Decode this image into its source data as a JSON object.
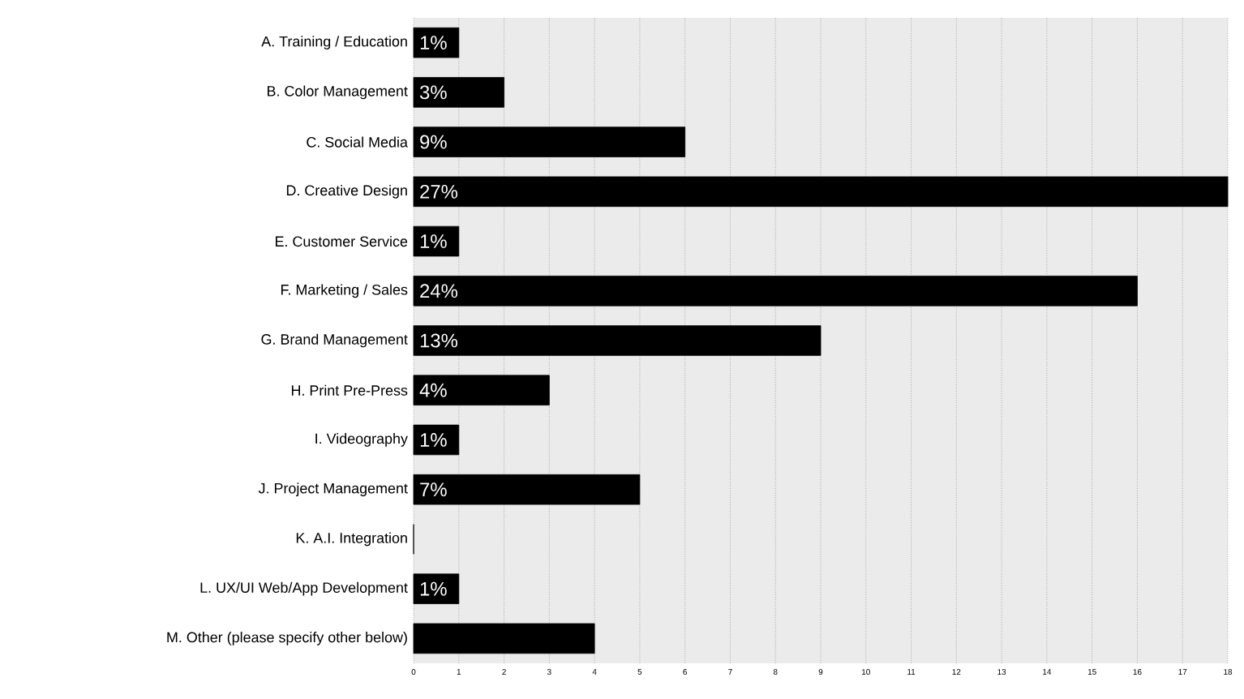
{
  "chart_data": {
    "type": "bar",
    "orientation": "horizontal",
    "categories": [
      "A. Training / Education",
      "B. Color Management",
      "C. Social Media",
      "D. Creative Design",
      "E. Customer Service",
      "F. Marketing / Sales",
      "G. Brand Management",
      "H. Print Pre-Press",
      "I. Videography",
      "J. Project Management",
      "K. A.I. Integration",
      "L. UX/UI Web/App Development",
      "M. Other (please specify other below)"
    ],
    "values": [
      1,
      2,
      6,
      18,
      1,
      16,
      9,
      3,
      1,
      5,
      0,
      1,
      4
    ],
    "annotations": [
      {
        "text": "1%",
        "y": "A. Training / Education"
      },
      {
        "text": "3%",
        "y": "B. Color Management"
      },
      {
        "text": "9%",
        "y": "C. Social Media"
      },
      {
        "text": "27%",
        "y": "D. Creative Design"
      },
      {
        "text": "1%",
        "y": "E. Customer Service"
      },
      {
        "text": "24%",
        "y": "F. Marketing / Sales"
      },
      {
        "text": "13%",
        "y": "G. Brand Management"
      },
      {
        "text": "4%",
        "y": "H. Print Pre-Press"
      },
      {
        "text": "1%",
        "y": "I. Videography"
      },
      {
        "text": "7%",
        "y": "J. Project Management"
      },
      {
        "text": "1%",
        "y": "L. UX/UI Web/App Development"
      }
    ],
    "color": "#000000",
    "xlim": [
      0,
      18
    ],
    "xticks": [
      0,
      1,
      2,
      3,
      4,
      5,
      6,
      7,
      8,
      9,
      10,
      11,
      12,
      13,
      14,
      15,
      16,
      17,
      18
    ],
    "grid": "x"
  }
}
